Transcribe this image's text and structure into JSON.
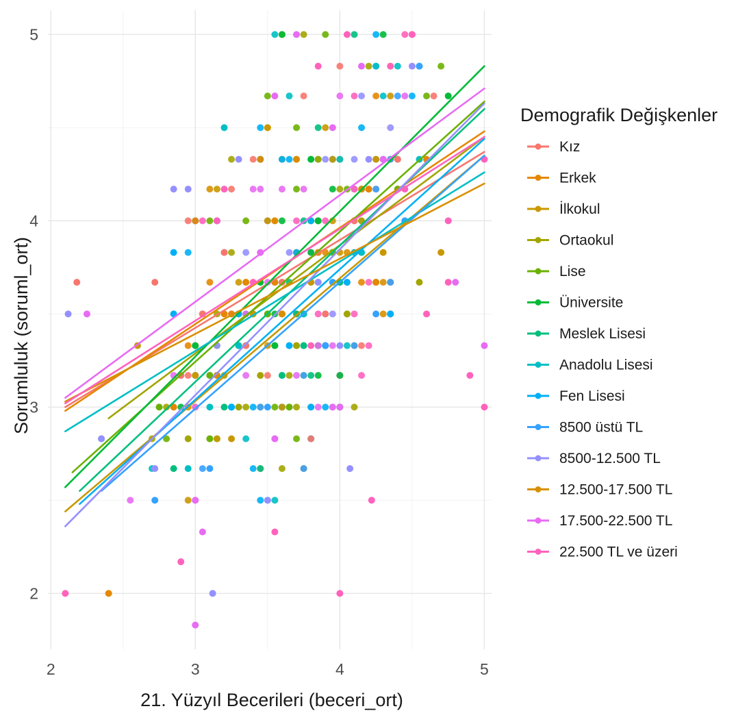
{
  "chart_data": {
    "type": "scatter",
    "xlabel": "21. Yüzyıl Becerileri (beceri_ort)",
    "ylabel": "Sorumluluk (soruml_ort)",
    "xlim": [
      1.98,
      5.05
    ],
    "ylim": [
      1.7,
      5.13
    ],
    "x_ticks": [
      "2",
      "3",
      "4",
      "5"
    ],
    "y_ticks": [
      "2",
      "3",
      "4",
      "5"
    ],
    "grid": true,
    "legend": {
      "title": "Demografik Değişkenler",
      "position": "right"
    },
    "series": [
      {
        "name": "Kız",
        "color": "#F8766D",
        "fit": {
          "x": [
            2.1,
            5.0
          ],
          "y": [
            3.0,
            4.37
          ]
        },
        "points": [
          [
            2.18,
            3.67
          ],
          [
            2.72,
            3.67
          ],
          [
            3.2,
            3.83
          ],
          [
            3.05,
            3.5
          ],
          [
            3.6,
            3.67
          ],
          [
            3.9,
            3.5
          ],
          [
            4.1,
            4.0
          ],
          [
            4.4,
            4.33
          ],
          [
            2.9,
            3.17
          ],
          [
            3.35,
            3.33
          ]
        ]
      },
      {
        "name": "Erkek",
        "color": "#E58700",
        "fit": {
          "x": [
            2.1,
            5.0
          ],
          "y": [
            2.98,
            4.48
          ]
        },
        "points": [
          [
            2.4,
            2.0
          ],
          [
            2.85,
            3.0
          ],
          [
            3.2,
            3.5
          ],
          [
            3.55,
            3.67
          ],
          [
            3.85,
            3.83
          ],
          [
            4.2,
            4.17
          ],
          [
            4.6,
            4.33
          ],
          [
            3.15,
            3.17
          ],
          [
            3.7,
            3.33
          ]
        ]
      },
      {
        "name": "İlkokul",
        "color": "#C99800",
        "fit": {
          "x": [
            2.1,
            5.0
          ],
          "y": [
            2.44,
            4.35
          ]
        },
        "points": [
          [
            2.6,
            3.33
          ],
          [
            3.0,
            3.17
          ],
          [
            3.4,
            3.5
          ],
          [
            3.8,
            3.67
          ],
          [
            4.3,
            3.83
          ],
          [
            4.7,
            3.83
          ],
          [
            3.25,
            2.83
          ]
        ]
      },
      {
        "name": "Ortaokul",
        "color": "#A3A500",
        "fit": {
          "x": [
            2.4,
            5.0
          ],
          "y": [
            2.94,
            4.45
          ]
        },
        "points": [
          [
            2.95,
            2.83
          ],
          [
            3.3,
            3.0
          ],
          [
            3.7,
            3.33
          ],
          [
            4.05,
            3.5
          ],
          [
            4.55,
            3.67
          ],
          [
            3.45,
            3.17
          ]
        ]
      },
      {
        "name": "Lise",
        "color": "#6BB100",
        "fit": {
          "x": [
            2.15,
            5.0
          ],
          "y": [
            2.65,
            4.64
          ]
        },
        "points": [
          [
            2.75,
            3.0
          ],
          [
            3.1,
            3.17
          ],
          [
            3.5,
            3.5
          ],
          [
            3.95,
            3.83
          ],
          [
            4.4,
            4.17
          ],
          [
            3.65,
            3.0
          ]
        ]
      },
      {
        "name": "Üniversite",
        "color": "#00BA38",
        "fit": {
          "x": [
            2.1,
            5.0
          ],
          "y": [
            2.57,
            4.83
          ]
        },
        "points": [
          [
            3.0,
            3.33
          ],
          [
            3.45,
            3.67
          ],
          [
            3.85,
            4.0
          ],
          [
            4.3,
            4.33
          ],
          [
            4.75,
            4.67
          ],
          [
            3.55,
            3.33
          ]
        ]
      },
      {
        "name": "Meslek Lisesi",
        "color": "#00BF7D",
        "fit": {
          "x": [
            2.2,
            5.0
          ],
          "y": [
            2.55,
            4.6
          ]
        },
        "points": [
          [
            2.35,
            2.83
          ],
          [
            2.85,
            2.67
          ],
          [
            3.2,
            3.0
          ],
          [
            3.6,
            3.17
          ],
          [
            4.0,
            3.67
          ],
          [
            4.45,
            4.0
          ]
        ]
      },
      {
        "name": "Anadolu Lisesi",
        "color": "#00BFC4",
        "fit": {
          "x": [
            2.1,
            5.0
          ],
          "y": [
            2.87,
            4.26
          ]
        },
        "points": [
          [
            3.2,
            4.5
          ],
          [
            2.95,
            2.67
          ],
          [
            3.3,
            3.33
          ],
          [
            3.75,
            3.5
          ],
          [
            4.15,
            3.83
          ],
          [
            4.55,
            4.33
          ],
          [
            3.1,
            3.0
          ]
        ]
      },
      {
        "name": "Fen Lisesi",
        "color": "#00B0F6",
        "fit": {
          "x": [
            2.2,
            5.0
          ],
          "y": [
            2.48,
            4.44
          ]
        },
        "points": [
          [
            2.85,
            3.83
          ],
          [
            2.85,
            3.5
          ],
          [
            3.25,
            3.0
          ],
          [
            3.65,
            3.33
          ],
          [
            4.05,
            3.67
          ],
          [
            4.35,
            3.5
          ],
          [
            3.8,
            3.0
          ]
        ]
      },
      {
        "name": "8500 üstü TL",
        "color": "#35A2FF",
        "fit": {
          "x": [
            2.35,
            5.0
          ],
          "y": [
            2.55,
            4.35
          ]
        },
        "points": [
          [
            2.72,
            2.5
          ],
          [
            3.1,
            2.67
          ],
          [
            3.5,
            3.0
          ],
          [
            3.9,
            3.33
          ],
          [
            4.25,
            3.5
          ],
          [
            4.45,
            4.0
          ]
        ]
      },
      {
        "name": "8500-12.500 TL",
        "color": "#9590FF",
        "fit": {
          "x": [
            2.1,
            5.0
          ],
          "y": [
            2.36,
            4.63
          ]
        },
        "points": [
          [
            2.12,
            3.5
          ],
          [
            2.35,
            2.83
          ],
          [
            2.72,
            2.67
          ],
          [
            3.12,
            2.0
          ],
          [
            3.5,
            2.5
          ],
          [
            4.07,
            2.67
          ],
          [
            4.5,
            4.83
          ],
          [
            4.2,
            4.33
          ],
          [
            4.0,
            3.33
          ],
          [
            3.85,
            3.67
          ],
          [
            3.3,
            4.33
          ],
          [
            2.85,
            4.17
          ],
          [
            2.95,
            4.17
          ]
        ]
      },
      {
        "name": "12.500-17.500 TL",
        "color": "#D89000",
        "fit": {
          "x": [
            2.1,
            5.0
          ],
          "y": [
            3.03,
            4.2
          ]
        },
        "points": []
      },
      {
        "name": "17.500-22.500 TL",
        "color": "#E76BF3",
        "fit": {
          "x": [
            2.1,
            5.0
          ],
          "y": [
            3.05,
            4.71
          ]
        },
        "points": [
          [
            2.25,
            3.5
          ],
          [
            3.7,
            5.0
          ],
          [
            4.15,
            4.83
          ],
          [
            3.55,
            4.67
          ],
          [
            3.95,
            4.5
          ],
          [
            4.3,
            4.33
          ],
          [
            3.45,
            3.83
          ],
          [
            4.8,
            3.67
          ],
          [
            5.0,
            3.33
          ],
          [
            4.0,
            3.0
          ],
          [
            3.55,
            2.83
          ],
          [
            3.0,
            2.5
          ],
          [
            3.05,
            2.33
          ],
          [
            3.0,
            1.83
          ]
        ]
      },
      {
        "name": "22.500 TL ve üzeri",
        "color": "#FF62BC",
        "fit": {
          "x": [
            2.1,
            5.0
          ],
          "y": [
            3.02,
            4.45
          ]
        },
        "points": [
          [
            2.1,
            2.0
          ],
          [
            2.9,
            2.17
          ],
          [
            3.55,
            2.33
          ],
          [
            4.0,
            2.0
          ],
          [
            4.22,
            2.5
          ],
          [
            3.85,
            4.83
          ],
          [
            4.05,
            5.0
          ],
          [
            4.5,
            5.0
          ],
          [
            4.45,
            4.17
          ],
          [
            3.8,
            3.33
          ],
          [
            3.4,
            3.67
          ],
          [
            3.15,
            4.0
          ],
          [
            3.2,
            4.17
          ],
          [
            4.9,
            3.17
          ],
          [
            5.0,
            3.0
          ],
          [
            4.75,
            4.0
          ],
          [
            4.6,
            3.5
          ],
          [
            4.75,
            3.67
          ],
          [
            5.0,
            4.33
          ]
        ]
      }
    ]
  }
}
